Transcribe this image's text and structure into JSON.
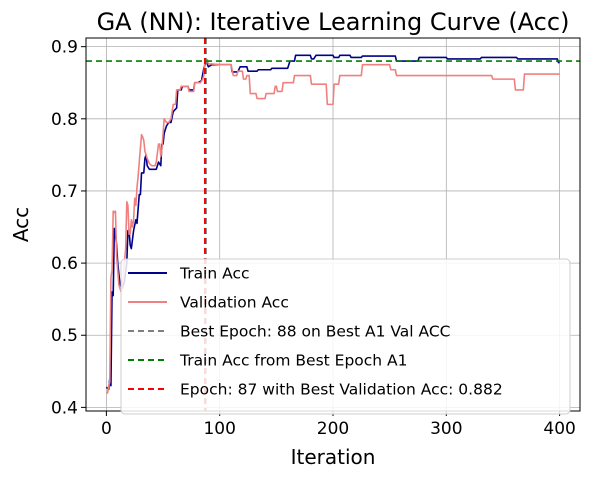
{
  "chart_data": {
    "type": "line",
    "title": "GA (NN): Iterative Learning Curve (Acc)",
    "xlabel": "Iteration",
    "ylabel": "Acc",
    "xlim": [
      -18,
      418
    ],
    "ylim": [
      0.395,
      0.912
    ],
    "xticks": [
      0,
      100,
      200,
      300,
      400
    ],
    "yticks": [
      0.4,
      0.5,
      0.6,
      0.7,
      0.8,
      0.9
    ],
    "xtick_labels": [
      "0",
      "100",
      "200",
      "300",
      "400"
    ],
    "ytick_labels": [
      "0.4",
      "0.5",
      "0.6",
      "0.7",
      "0.8",
      "0.9"
    ],
    "grid": true,
    "legend_position": "lower-right",
    "series": [
      {
        "name": "Train Acc",
        "color": "#00008b",
        "style": "solid",
        "points": [
          [
            0,
            0.428
          ],
          [
            2,
            0.425
          ],
          [
            3,
            0.44
          ],
          [
            4,
            0.43
          ],
          [
            5,
            0.56
          ],
          [
            6,
            0.555
          ],
          [
            7,
            0.648
          ],
          [
            8,
            0.64
          ],
          [
            9,
            0.625
          ],
          [
            10,
            0.6
          ],
          [
            12,
            0.57
          ],
          [
            14,
            0.565
          ],
          [
            16,
            0.575
          ],
          [
            18,
            0.6
          ],
          [
            19,
            0.645
          ],
          [
            20,
            0.645
          ],
          [
            21,
            0.625
          ],
          [
            22,
            0.62
          ],
          [
            24,
            0.645
          ],
          [
            26,
            0.66
          ],
          [
            27,
            0.655
          ],
          [
            28,
            0.675
          ],
          [
            29,
            0.695
          ],
          [
            30,
            0.695
          ],
          [
            31,
            0.725
          ],
          [
            33,
            0.725
          ],
          [
            34,
            0.745
          ],
          [
            35,
            0.75
          ],
          [
            36,
            0.735
          ],
          [
            38,
            0.73
          ],
          [
            40,
            0.73
          ],
          [
            44,
            0.73
          ],
          [
            45,
            0.735
          ],
          [
            46,
            0.74
          ],
          [
            48,
            0.735
          ],
          [
            49,
            0.765
          ],
          [
            50,
            0.765
          ],
          [
            51,
            0.78
          ],
          [
            53,
            0.79
          ],
          [
            55,
            0.795
          ],
          [
            57,
            0.795
          ],
          [
            59,
            0.81
          ],
          [
            62,
            0.815
          ],
          [
            63,
            0.84
          ],
          [
            66,
            0.84
          ],
          [
            67,
            0.845
          ],
          [
            72,
            0.845
          ],
          [
            73,
            0.84
          ],
          [
            77,
            0.84
          ],
          [
            78,
            0.85
          ],
          [
            80,
            0.85
          ],
          [
            81,
            0.85
          ],
          [
            84,
            0.853
          ],
          [
            86,
            0.87
          ],
          [
            88,
            0.88
          ],
          [
            90,
            0.872
          ],
          [
            93,
            0.875
          ],
          [
            100,
            0.875
          ],
          [
            110,
            0.875
          ],
          [
            111,
            0.865
          ],
          [
            116,
            0.865
          ],
          [
            118,
            0.872
          ],
          [
            124,
            0.872
          ],
          [
            125,
            0.866
          ],
          [
            133,
            0.866
          ],
          [
            134,
            0.868
          ],
          [
            145,
            0.868
          ],
          [
            146,
            0.87
          ],
          [
            160,
            0.87
          ],
          [
            162,
            0.88
          ],
          [
            166,
            0.88
          ],
          [
            167,
            0.888
          ],
          [
            180,
            0.888
          ],
          [
            181,
            0.883
          ],
          [
            183,
            0.883
          ],
          [
            185,
            0.888
          ],
          [
            200,
            0.888
          ],
          [
            201,
            0.885
          ],
          [
            205,
            0.885
          ],
          [
            206,
            0.888
          ],
          [
            215,
            0.888
          ],
          [
            216,
            0.885
          ],
          [
            225,
            0.885
          ],
          [
            226,
            0.887
          ],
          [
            255,
            0.887
          ],
          [
            256,
            0.88
          ],
          [
            275,
            0.88
          ],
          [
            276,
            0.885
          ],
          [
            300,
            0.885
          ],
          [
            301,
            0.883
          ],
          [
            330,
            0.883
          ],
          [
            331,
            0.885
          ],
          [
            362,
            0.885
          ],
          [
            363,
            0.883
          ],
          [
            398,
            0.883
          ],
          [
            399,
            0.878
          ],
          [
            400,
            0.878
          ]
        ]
      },
      {
        "name": "Validation Acc",
        "color": "#f08080",
        "style": "solid",
        "points": [
          [
            0,
            0.42
          ],
          [
            1,
            0.42
          ],
          [
            2,
            0.43
          ],
          [
            3,
            0.435
          ],
          [
            4,
            0.58
          ],
          [
            5,
            0.59
          ],
          [
            6,
            0.672
          ],
          [
            7,
            0.67
          ],
          [
            8,
            0.672
          ],
          [
            9,
            0.61
          ],
          [
            10,
            0.59
          ],
          [
            11,
            0.57
          ],
          [
            13,
            0.56
          ],
          [
            15,
            0.585
          ],
          [
            17,
            0.62
          ],
          [
            18,
            0.685
          ],
          [
            19,
            0.68
          ],
          [
            20,
            0.64
          ],
          [
            21,
            0.64
          ],
          [
            22,
            0.66
          ],
          [
            23,
            0.65
          ],
          [
            24,
            0.66
          ],
          [
            25,
            0.69
          ],
          [
            26,
            0.68
          ],
          [
            27,
            0.705
          ],
          [
            28,
            0.72
          ],
          [
            29,
            0.74
          ],
          [
            31,
            0.778
          ],
          [
            32,
            0.775
          ],
          [
            33,
            0.77
          ],
          [
            34,
            0.755
          ],
          [
            36,
            0.745
          ],
          [
            38,
            0.738
          ],
          [
            40,
            0.735
          ],
          [
            43,
            0.735
          ],
          [
            44,
            0.74
          ],
          [
            46,
            0.765
          ],
          [
            47,
            0.765
          ],
          [
            48,
            0.748
          ],
          [
            49,
            0.758
          ],
          [
            51,
            0.8
          ],
          [
            53,
            0.795
          ],
          [
            55,
            0.795
          ],
          [
            57,
            0.8
          ],
          [
            59,
            0.82
          ],
          [
            61,
            0.82
          ],
          [
            62,
            0.84
          ],
          [
            65,
            0.84
          ],
          [
            66,
            0.845
          ],
          [
            72,
            0.845
          ],
          [
            73,
            0.838
          ],
          [
            75,
            0.838
          ],
          [
            77,
            0.838
          ],
          [
            78,
            0.85
          ],
          [
            83,
            0.85
          ],
          [
            85,
            0.855
          ],
          [
            86,
            0.86
          ],
          [
            87,
            0.882
          ],
          [
            89,
            0.882
          ],
          [
            90,
            0.876
          ],
          [
            93,
            0.876
          ],
          [
            100,
            0.875
          ],
          [
            110,
            0.875
          ],
          [
            112,
            0.86
          ],
          [
            115,
            0.86
          ],
          [
            116,
            0.866
          ],
          [
            120,
            0.866
          ],
          [
            121,
            0.855
          ],
          [
            123,
            0.855
          ],
          [
            124,
            0.86
          ],
          [
            126,
            0.86
          ],
          [
            127,
            0.835
          ],
          [
            132,
            0.835
          ],
          [
            133,
            0.828
          ],
          [
            140,
            0.828
          ],
          [
            141,
            0.835
          ],
          [
            148,
            0.835
          ],
          [
            149,
            0.845
          ],
          [
            150,
            0.845
          ],
          [
            151,
            0.838
          ],
          [
            155,
            0.838
          ],
          [
            156,
            0.85
          ],
          [
            165,
            0.85
          ],
          [
            166,
            0.86
          ],
          [
            180,
            0.86
          ],
          [
            181,
            0.848
          ],
          [
            194,
            0.848
          ],
          [
            195,
            0.82
          ],
          [
            200,
            0.82
          ],
          [
            201,
            0.848
          ],
          [
            205,
            0.848
          ],
          [
            206,
            0.86
          ],
          [
            215,
            0.86
          ],
          [
            216,
            0.86
          ],
          [
            225,
            0.86
          ],
          [
            226,
            0.875
          ],
          [
            250,
            0.875
          ],
          [
            251,
            0.868
          ],
          [
            255,
            0.868
          ],
          [
            256,
            0.86
          ],
          [
            300,
            0.86
          ],
          [
            301,
            0.86
          ],
          [
            340,
            0.86
          ],
          [
            341,
            0.855
          ],
          [
            360,
            0.855
          ],
          [
            361,
            0.84
          ],
          [
            368,
            0.84
          ],
          [
            369,
            0.862
          ],
          [
            400,
            0.862
          ]
        ]
      }
    ],
    "reference_lines": [
      {
        "name": "Best Epoch: 88 on Best A1 Val ACC",
        "orientation": "vertical",
        "value": 88,
        "color": "#808080",
        "style": "dashed"
      },
      {
        "name": "Train Acc from Best Epoch A1",
        "orientation": "horizontal",
        "value": 0.88,
        "color": "#008000",
        "style": "dashed"
      },
      {
        "name": "Epoch: 87 with Best Validation Acc: 0.882",
        "orientation": "vertical",
        "value": 87,
        "color": "#ff0000",
        "style": "dashed"
      }
    ]
  }
}
